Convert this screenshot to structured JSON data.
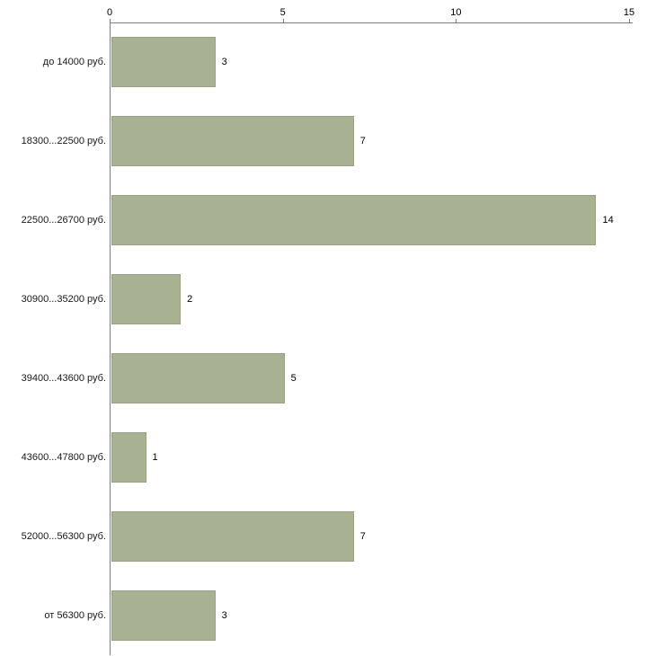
{
  "chart_data": {
    "type": "bar",
    "orientation": "horizontal",
    "title": "",
    "xlabel": "",
    "ylabel": "",
    "xlim": [
      0,
      15
    ],
    "x_ticks": [
      0,
      5,
      10,
      15
    ],
    "grid": false,
    "bar_color": "#a9b193",
    "bar_border_color": "#99a184",
    "axis_color": "#808080",
    "categories": [
      "до 14000 руб.",
      "18300...22500 руб.",
      "22500...26700 руб.",
      "30900...35200 руб.",
      "39400...43600 руб.",
      "43600...47800 руб.",
      "52000...56300 руб.",
      "от 56300 руб."
    ],
    "values": [
      3,
      7,
      14,
      2,
      5,
      1,
      7,
      3
    ]
  }
}
